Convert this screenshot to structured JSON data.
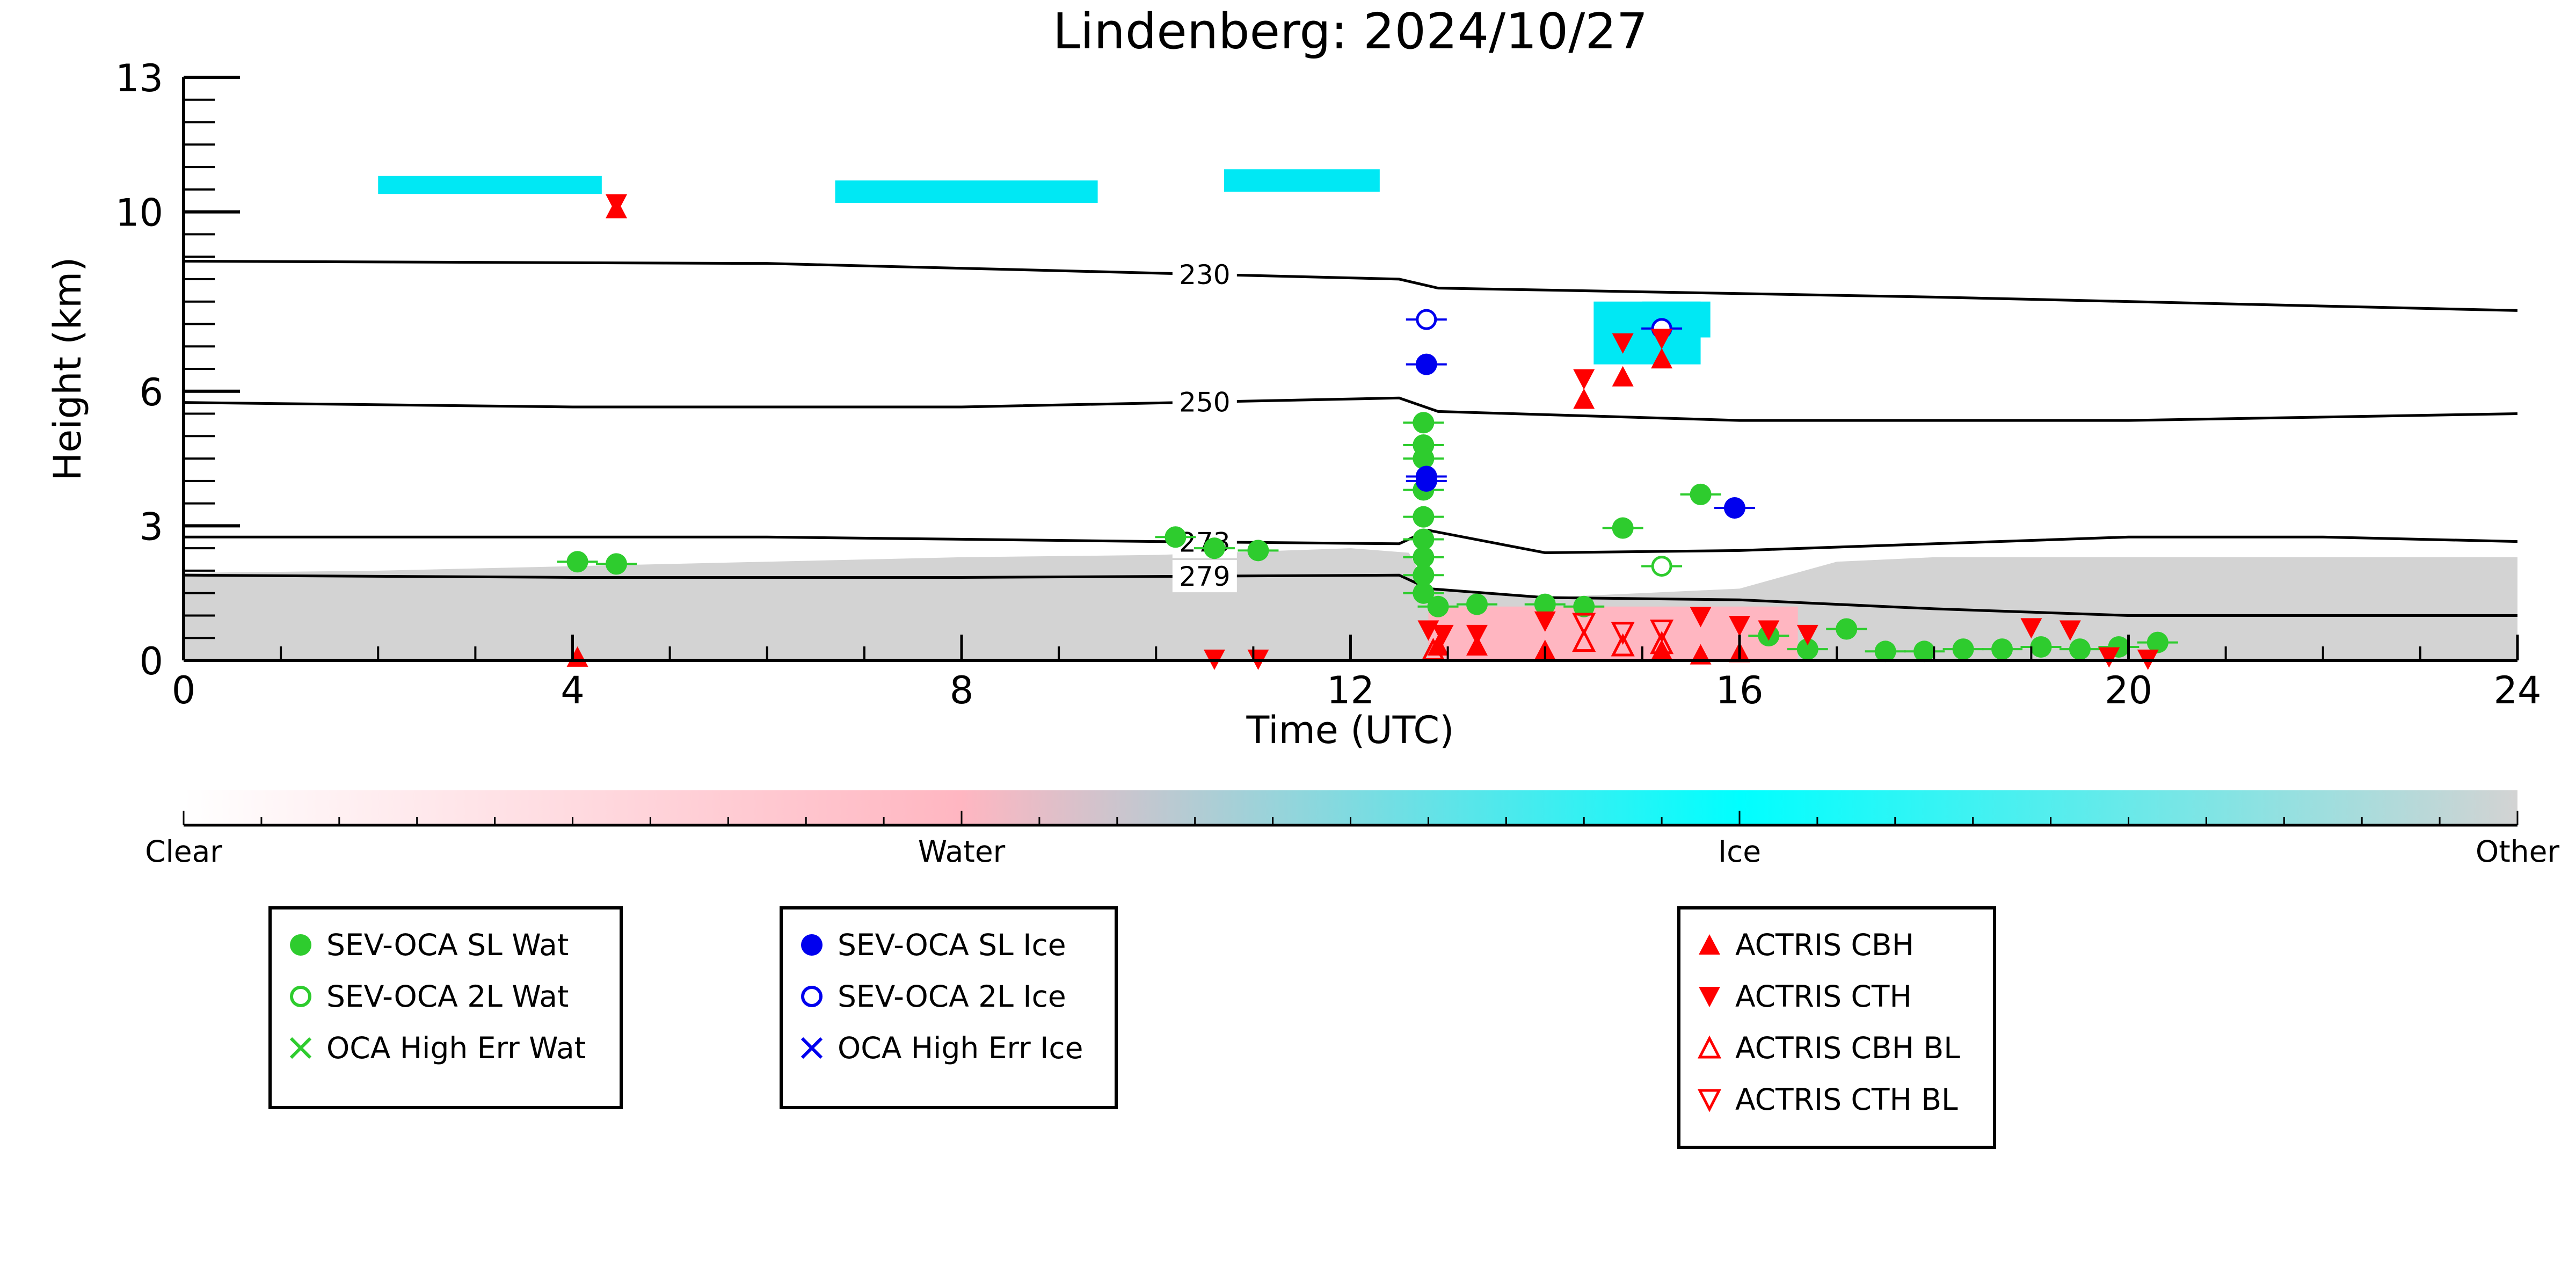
{
  "chart_data": {
    "type": "scatter",
    "title": "Lindenberg: 2024/10/27",
    "xlabel": "Time (UTC)",
    "ylabel": "Height (km)",
    "xlim": [
      0,
      24
    ],
    "ylim": [
      0,
      13
    ],
    "xticks": [
      "0",
      "4",
      "8",
      "12",
      "16",
      "20",
      "24"
    ],
    "yticks": [
      "0",
      "3",
      "6",
      "10",
      "13"
    ],
    "colorbar": {
      "labels": [
        "Clear",
        "Water",
        "Ice",
        "Other"
      ],
      "colors": [
        "#ffffff",
        "#ffb6c1",
        "#00ffff",
        "#d3d3d3"
      ]
    },
    "isotherms": [
      {
        "label": "230",
        "x": [
          0,
          6,
          12.5,
          12.9,
          18,
          24
        ],
        "y": [
          8.9,
          8.85,
          8.5,
          8.3,
          8.1,
          7.8
        ]
      },
      {
        "label": "250",
        "x": [
          0,
          4,
          8,
          12.5,
          12.9,
          16,
          20,
          24
        ],
        "y": [
          5.75,
          5.65,
          5.65,
          5.85,
          5.55,
          5.35,
          5.35,
          5.5
        ]
      },
      {
        "label": "273",
        "x": [
          0,
          6,
          10,
          12.5,
          12.8,
          14,
          16,
          18,
          20,
          22,
          24
        ],
        "y": [
          2.75,
          2.75,
          2.65,
          2.6,
          2.9,
          2.4,
          2.45,
          2.6,
          2.75,
          2.75,
          2.65
        ]
      },
      {
        "label": "279",
        "x": [
          0,
          4,
          8,
          12.5,
          12.8,
          14,
          16,
          18,
          20,
          22,
          24
        ],
        "y": [
          1.9,
          1.85,
          1.85,
          1.9,
          1.6,
          1.4,
          1.35,
          1.15,
          1.0,
          1.0,
          1.0
        ]
      }
    ],
    "series": [
      {
        "name": "SEV-OCA SL Wat",
        "color": "#2ecc2e",
        "marker": "filled-circle",
        "points": [
          [
            4.05,
            2.2
          ],
          [
            4.45,
            2.15
          ],
          [
            10.2,
            2.75
          ],
          [
            10.6,
            2.5
          ],
          [
            11.05,
            2.45
          ],
          [
            12.75,
            5.3
          ],
          [
            12.75,
            4.8
          ],
          [
            12.75,
            4.5
          ],
          [
            12.75,
            3.8
          ],
          [
            12.75,
            3.2
          ],
          [
            12.75,
            2.7
          ],
          [
            12.75,
            2.3
          ],
          [
            12.75,
            1.9
          ],
          [
            12.75,
            1.5
          ],
          [
            12.9,
            1.2
          ],
          [
            13.3,
            1.25
          ],
          [
            14.0,
            1.25
          ],
          [
            14.4,
            1.2
          ],
          [
            14.8,
            2.95
          ],
          [
            15.6,
            3.7
          ],
          [
            16.3,
            0.55
          ],
          [
            16.7,
            0.25
          ],
          [
            17.1,
            0.7
          ],
          [
            17.5,
            0.2
          ],
          [
            17.9,
            0.2
          ],
          [
            18.3,
            0.25
          ],
          [
            18.7,
            0.25
          ],
          [
            19.1,
            0.3
          ],
          [
            19.5,
            0.25
          ],
          [
            19.9,
            0.3
          ],
          [
            20.3,
            0.4
          ]
        ]
      },
      {
        "name": "SEV-OCA 2L Wat",
        "color": "#2ecc2e",
        "marker": "open-circle",
        "points": [
          [
            15.2,
            2.1
          ]
        ]
      },
      {
        "name": "OCA High Err Wat",
        "color": "#2ecc2e",
        "marker": "x",
        "points": []
      },
      {
        "name": "SEV-OCA SL Ice",
        "color": "#0000ee",
        "marker": "filled-circle",
        "points": [
          [
            12.78,
            6.6
          ],
          [
            12.78,
            4.1
          ],
          [
            12.78,
            4.0
          ],
          [
            15.95,
            3.4
          ]
        ]
      },
      {
        "name": "SEV-OCA 2L Ice",
        "color": "#0000ee",
        "marker": "open-circle",
        "points": [
          [
            12.78,
            7.6
          ],
          [
            15.2,
            7.4
          ]
        ]
      },
      {
        "name": "OCA High Err Ice",
        "color": "#0000ee",
        "marker": "x",
        "points": []
      },
      {
        "name": "ACTRIS CBH",
        "color": "#ff0000",
        "marker": "triangle-up",
        "points": [
          [
            4.45,
            10.05
          ],
          [
            14.4,
            5.8
          ],
          [
            14.8,
            6.3
          ],
          [
            15.2,
            6.7
          ],
          [
            4.05,
            0.05
          ],
          [
            12.9,
            0.3
          ],
          [
            13.3,
            0.3
          ],
          [
            14.0,
            0.2
          ],
          [
            15.2,
            0.2
          ],
          [
            15.6,
            0.1
          ],
          [
            16.0,
            0.15
          ]
        ]
      },
      {
        "name": "ACTRIS CTH",
        "color": "#ff0000",
        "marker": "triangle-down",
        "points": [
          [
            4.45,
            10.2
          ],
          [
            14.4,
            6.3
          ],
          [
            14.8,
            7.1
          ],
          [
            15.2,
            7.2
          ],
          [
            10.6,
            0.05
          ],
          [
            11.05,
            0.05
          ],
          [
            12.8,
            0.7
          ],
          [
            12.95,
            0.6
          ],
          [
            13.3,
            0.6
          ],
          [
            14.0,
            0.9
          ],
          [
            15.6,
            1.0
          ],
          [
            16.0,
            0.8
          ],
          [
            16.3,
            0.7
          ],
          [
            16.7,
            0.6
          ],
          [
            19.0,
            0.75
          ],
          [
            19.4,
            0.7
          ],
          [
            19.8,
            0.1
          ],
          [
            20.2,
            0.05
          ]
        ]
      },
      {
        "name": "ACTRIS CBH BL",
        "color": "#ff0000",
        "marker": "open-triangle-up",
        "points": [
          [
            12.85,
            0.2
          ],
          [
            14.4,
            0.4
          ],
          [
            14.8,
            0.3
          ],
          [
            15.2,
            0.35
          ]
        ]
      },
      {
        "name": "ACTRIS CTH BL",
        "color": "#ff0000",
        "marker": "open-triangle-down",
        "points": [
          [
            14.4,
            0.85
          ],
          [
            14.8,
            0.65
          ],
          [
            15.2,
            0.7
          ]
        ]
      }
    ],
    "legend_groups": [
      [
        "SEV-OCA SL Wat",
        "SEV-OCA 2L Wat",
        "OCA High Err Wat"
      ],
      [
        "SEV-OCA SL Ice",
        "SEV-OCA 2L Ice",
        "OCA High Err Ice"
      ],
      [
        "ACTRIS CBH",
        "ACTRIS CTH",
        "ACTRIS CBH BL",
        "ACTRIS CTH BL"
      ]
    ]
  }
}
